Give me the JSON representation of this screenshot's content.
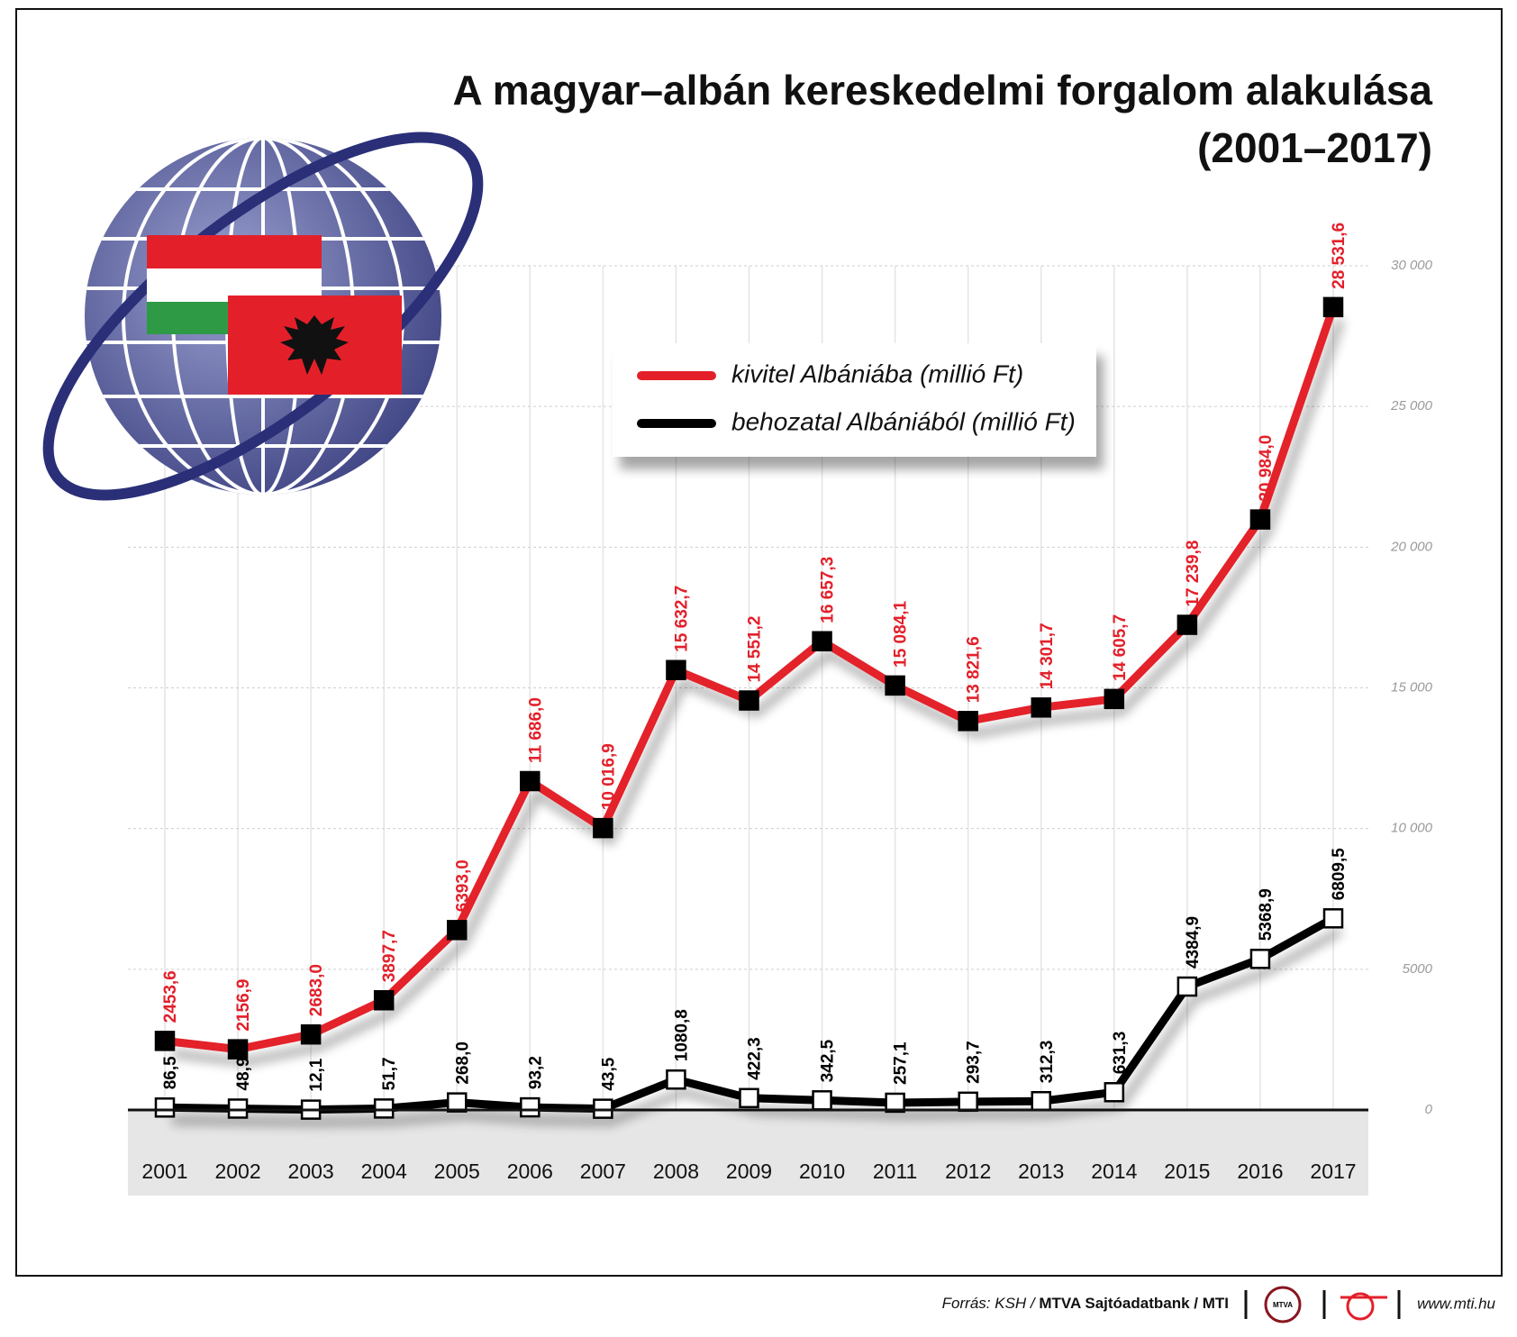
{
  "chart_data": {
    "type": "line",
    "title": "A magyar–albán kereskedelmi forgalom alakulása",
    "subtitle": "(2001–2017)",
    "categories": [
      "2001",
      "2002",
      "2003",
      "2004",
      "2005",
      "2006",
      "2007",
      "2008",
      "2009",
      "2010",
      "2011",
      "2012",
      "2013",
      "2014",
      "2015",
      "2016",
      "2017"
    ],
    "series": [
      {
        "name": "kivitel Albániába (millió Ft)",
        "color": "#e3202a",
        "marker_fill": "#000000",
        "values": [
          2453.6,
          2156.9,
          2683.0,
          3897.7,
          6393.0,
          11686.0,
          10016.9,
          15632.7,
          14551.2,
          16657.3,
          15084.1,
          13821.6,
          14301.7,
          14605.7,
          17239.8,
          20984.0,
          28531.6
        ],
        "value_labels": [
          "2453,6",
          "2156,9",
          "2683,0",
          "3897,7",
          "6393,0",
          "11 686,0",
          "10 016,9",
          "15 632,7",
          "14 551,2",
          "16 657,3",
          "15 084,1",
          "13 821,6",
          "14 301,7",
          "14 605,7",
          "17 239,8",
          "20 984,0",
          "28 531,6"
        ]
      },
      {
        "name": "behozatal Albániából (millió Ft)",
        "color": "#000000",
        "marker_fill": "#ffffff",
        "values": [
          86.5,
          48.9,
          12.1,
          51.7,
          268.0,
          93.2,
          43.5,
          1080.8,
          422.3,
          342.5,
          257.1,
          293.7,
          312.3,
          631.3,
          4384.9,
          5368.9,
          6809.5
        ],
        "value_labels": [
          "86,5",
          "48,9",
          "12,1",
          "51,7",
          "268,0",
          "93,2",
          "43,5",
          "1080,8",
          "422,3",
          "342,5",
          "257,1",
          "293,7",
          "312,3",
          "631,3",
          "4384,9",
          "5368,9",
          "6809,5"
        ]
      }
    ],
    "ylim": [
      0,
      30000
    ],
    "yticks": [
      0,
      5000,
      {
        "value": 10000,
        "label": "10 000"
      },
      {
        "value": 15000,
        "label": "15 000"
      },
      {
        "value": 20000,
        "label": "20 000"
      },
      {
        "value": 25000,
        "label": "25 000"
      },
      {
        "value": 30000,
        "label": "30 000"
      }
    ],
    "grid": true
  },
  "footer": {
    "source_prefix": "Forrás: KSH / ",
    "source_bold": "MTVA Sajtóadatbank",
    "source_suffix": " / MTI",
    "logo": "MTVA",
    "url": "www.mti.hu"
  }
}
